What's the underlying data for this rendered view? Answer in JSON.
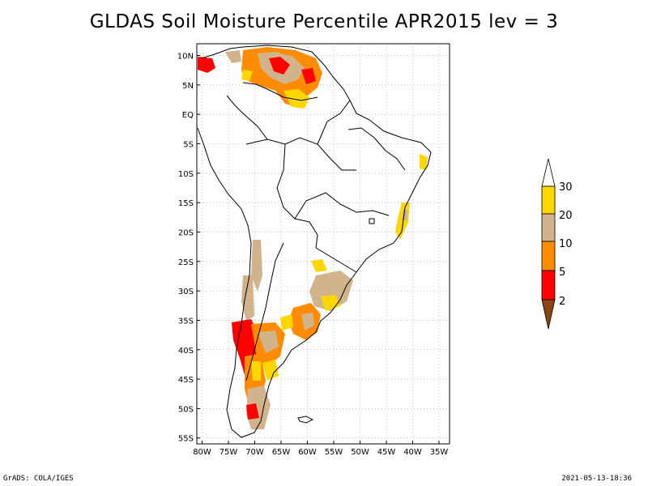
{
  "title": "GLDAS Soil Moisture Percentile APR2015 lev = 3",
  "map": {
    "lat_ticks": [
      "10N",
      "5N",
      "EQ",
      "5S",
      "10S",
      "15S",
      "20S",
      "25S",
      "30S",
      "35S",
      "40S",
      "45S",
      "50S",
      "55S"
    ],
    "lon_ticks": [
      "80W",
      "75W",
      "70W",
      "65W",
      "60W",
      "55W",
      "50W",
      "45W",
      "40W",
      "35W"
    ],
    "lat_range": [
      -56,
      12
    ],
    "lon_range": [
      -81,
      -33
    ],
    "grid": true
  },
  "colorbar": {
    "labels": [
      "30",
      "20",
      "10",
      "5",
      "2"
    ],
    "colors": {
      "above_30": "#ffffff",
      "20_30": "#ffd700",
      "10_20": "#d2b48c",
      "5_10": "#ff8c00",
      "2_5": "#ff0000",
      "below_2": "#8b4513"
    }
  },
  "footer": {
    "left": "GrADS: COLA/IGES",
    "right": "2021-05-13-18:36"
  }
}
